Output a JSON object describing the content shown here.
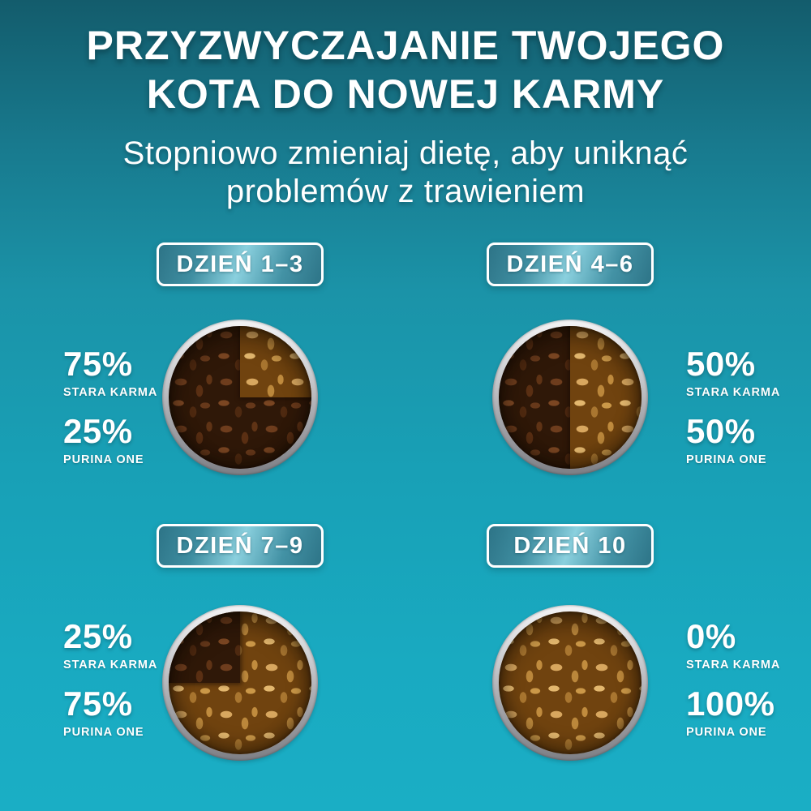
{
  "poster": {
    "title_line1": "PRZYZWYCZAJANIE TWOJEGO",
    "title_line2": "KOTA DO NOWEJ KARMY",
    "subtitle_line1": "Stopniowo zmieniaj dietę, aby uniknąć",
    "subtitle_line2": "problemów z trawieniem"
  },
  "labels": {
    "old_food": "STARA KARMA",
    "new_food": "PURINA ONE"
  },
  "stages": [
    {
      "badge": "DZIEŃ 1–3",
      "old_pct": "75%",
      "new_pct": "25%",
      "new_food_region": "top-right-quarter",
      "labels_side": "left"
    },
    {
      "badge": "DZIEŃ 4–6",
      "old_pct": "50%",
      "new_pct": "50%",
      "new_food_region": "right-half",
      "labels_side": "right"
    },
    {
      "badge": "DZIEŃ 7–9",
      "old_pct": "25%",
      "new_pct": "75%",
      "new_food_region": "all-but-top-left-quarter",
      "labels_side": "left"
    },
    {
      "badge": "DZIEŃ 10",
      "old_pct": "0%",
      "new_pct": "100%",
      "new_food_region": "full-bowl",
      "labels_side": "right"
    }
  ],
  "colors": {
    "background_top": "#135c6c",
    "background_bottom": "#1aaec5",
    "text": "#ffffff",
    "old_kibble": "#4a2a12",
    "new_kibble": "#c3924a",
    "badge_highlight": "#8ad0de",
    "bowl_rim_silver": "#c9cacd"
  }
}
